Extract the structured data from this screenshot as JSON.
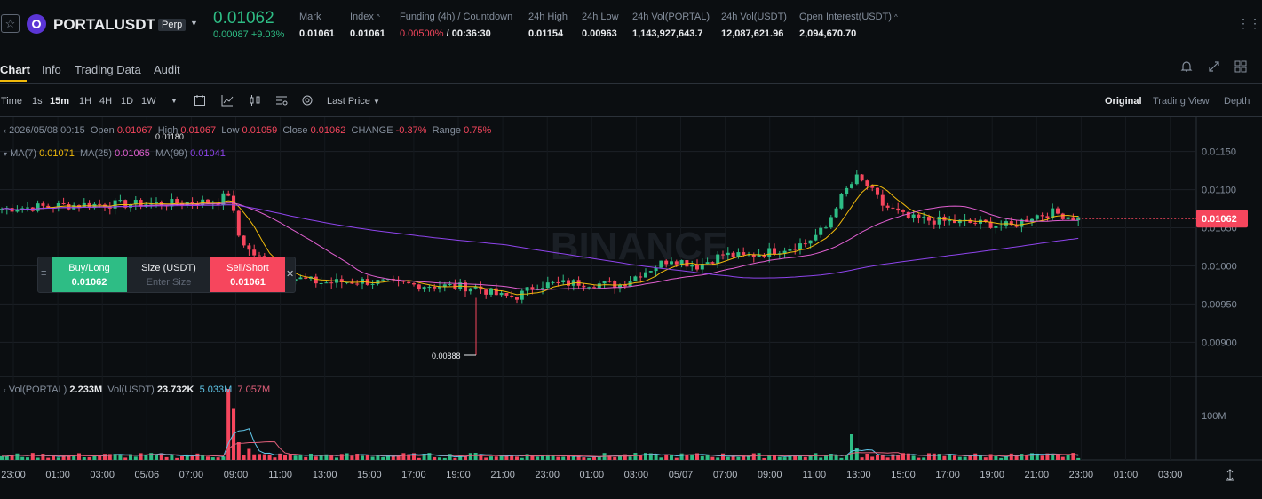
{
  "header": {
    "symbol": "PORTALUSDT",
    "badge": "Perp",
    "price": "0.01062",
    "change_abs": "0.00087",
    "change_pct": "+9.03%",
    "stats": [
      {
        "label": "Mark",
        "value": "0.01061"
      },
      {
        "label": "Index",
        "value": "0.01061"
      },
      {
        "label": "Funding (4h) / Countdown",
        "value": "0.00500%",
        "value2": "/ 00:36:30"
      },
      {
        "label": "24h High",
        "value": "0.01154"
      },
      {
        "label": "24h Low",
        "value": "0.00963"
      },
      {
        "label": "24h Vol(PORTAL)",
        "value": "1,143,927,643.7"
      },
      {
        "label": "24h Vol(USDT)",
        "value": "12,087,621.96"
      },
      {
        "label": "Open Interest(USDT)",
        "value": "2,094,670.70"
      }
    ]
  },
  "tabs": [
    "Chart",
    "Info",
    "Trading Data",
    "Audit"
  ],
  "toolbar": {
    "time_label": "Time",
    "intervals": [
      "1s",
      "15m",
      "1H",
      "4H",
      "1D",
      "1W"
    ],
    "active_interval": "15m",
    "price_type": "Last Price",
    "views": [
      "Original",
      "Trading View",
      "Depth"
    ],
    "active_view": "Original"
  },
  "ohlc_line": {
    "date": "2026/05/08 00:15",
    "open_label": "Open",
    "open": "0.01067",
    "high_label": "High",
    "high": "0.01067",
    "low_label": "Low",
    "low": "0.01059",
    "close_label": "Close",
    "close": "0.01062",
    "change_label": "CHANGE",
    "change": "-0.37%",
    "range_label": "Range",
    "range": "0.75%"
  },
  "ma_line": {
    "ma7_label": "MA(7)",
    "ma7": "0.01071",
    "ma25_label": "MA(25)",
    "ma25": "0.01065",
    "ma99_label": "MA(99)",
    "ma99": "0.01041"
  },
  "vol_line": {
    "label1": "Vol(PORTAL)",
    "value1": "2.233M",
    "label2": "Vol(USDT)",
    "value2": "23.732K",
    "ma5": "5.033M",
    "ma10": "7.057M"
  },
  "trade_panel": {
    "buy_label": "Buy/Long",
    "buy_price": "0.01062",
    "size_label": "Size (USDT)",
    "size_placeholder": "Enter Size",
    "sell_label": "Sell/Short",
    "sell_price": "0.01061"
  },
  "watermark": "BINANCE",
  "colors": {
    "up": "#2ebd85",
    "down": "#f6465d",
    "ma7": "#f0b90b",
    "ma25": "#e05fd0",
    "ma99": "#8e44ec",
    "bg": "#0b0e11",
    "accent": "#f0b90b"
  },
  "chart_data": {
    "type": "candlestick",
    "interval": "15m",
    "y_ticks": [
      0.0115,
      0.011,
      0.0105,
      0.01,
      0.0095,
      0.009
    ],
    "y_tick_labels": [
      "0.01150",
      "0.01100",
      "0.01050",
      "0.01000",
      "0.00950",
      "0.00900"
    ],
    "ylim": [
      0.00855,
      0.01195
    ],
    "current_price": "0.01062",
    "annotations": [
      {
        "text": "0.01180",
        "type": "high"
      },
      {
        "text": "0.00888",
        "type": "low"
      }
    ],
    "x_tick_labels": [
      "23:00",
      "01:00",
      "03:00",
      "05/06",
      "07:00",
      "09:00",
      "11:00",
      "13:00",
      "15:00",
      "17:00",
      "19:00",
      "21:00",
      "23:00",
      "01:00",
      "03:00",
      "05/07",
      "07:00",
      "09:00",
      "11:00",
      "13:00",
      "15:00",
      "17:00",
      "19:00",
      "21:00",
      "23:00",
      "01:00",
      "03:00"
    ],
    "price_anchors": [
      [
        0,
        0.01075
      ],
      [
        15,
        0.0108
      ],
      [
        33,
        0.01082
      ],
      [
        40,
        0.01084
      ],
      [
        42,
        0.01085
      ],
      [
        44,
        0.01095
      ],
      [
        46,
        0.0104
      ],
      [
        48,
        0.0102
      ],
      [
        52,
        0.01
      ],
      [
        56,
        0.00985
      ],
      [
        62,
        0.00978
      ],
      [
        70,
        0.0098
      ],
      [
        80,
        0.00975
      ],
      [
        92,
        0.00972
      ],
      [
        97,
        0.0096
      ],
      [
        100,
        0.0096
      ],
      [
        104,
        0.00975
      ],
      [
        112,
        0.00978
      ],
      [
        120,
        0.00975
      ],
      [
        124,
        0.0099
      ],
      [
        130,
        0.0101
      ],
      [
        135,
        0.01
      ],
      [
        140,
        0.01015
      ],
      [
        144,
        0.01012
      ],
      [
        150,
        0.0102
      ],
      [
        156,
        0.0103
      ],
      [
        160,
        0.0105
      ],
      [
        162,
        0.0108
      ],
      [
        164,
        0.011
      ],
      [
        166,
        0.01115
      ],
      [
        168,
        0.01105
      ],
      [
        171,
        0.0108
      ],
      [
        176,
        0.01062
      ],
      [
        184,
        0.01058
      ],
      [
        192,
        0.01055
      ],
      [
        196,
        0.01052
      ],
      [
        200,
        0.01065
      ],
      [
        204,
        0.0107
      ],
      [
        209,
        0.01062
      ]
    ],
    "volume_y_tick": "100M",
    "volume_spikes": [
      [
        44,
        160
      ],
      [
        45,
        115
      ],
      [
        46,
        40
      ],
      [
        48,
        25
      ],
      [
        62,
        10
      ],
      [
        92,
        16
      ],
      [
        127,
        10
      ],
      [
        165,
        58
      ],
      [
        166,
        26
      ],
      [
        168,
        14
      ],
      [
        170,
        12
      ],
      [
        202,
        9
      ]
    ]
  }
}
